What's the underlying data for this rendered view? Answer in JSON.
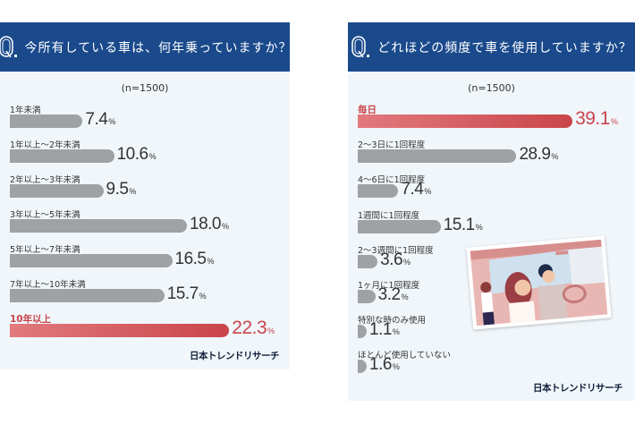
{
  "left": {
    "question_mark": "Q",
    "question": "今所有している車は、何年乗っていますか？",
    "sample": "(n=1500)",
    "brand": "日本トレンドリサーチ"
  },
  "right": {
    "question_mark": "Q",
    "question": "どれほどの頻度で車を使用していますか？",
    "sample": "(n=1500)",
    "brand": "日本トレンドリサーチ",
    "image_alt": "car-driving-illustration"
  },
  "colors": {
    "header": "#1a4a8c",
    "bar": "#9fa1a4",
    "highlight": "#c9454b",
    "panel_bg": "#f0f6fa"
  },
  "chart_data": [
    {
      "type": "bar",
      "orientation": "horizontal",
      "title": "今所有している車は、何年乗っていますか？",
      "subtitle": "(n=1500)",
      "unit": "%",
      "categories": [
        "1年未満",
        "1年以上～2年未満",
        "2年以上～3年未満",
        "3年以上～5年未満",
        "5年以上～7年未満",
        "7年以上～10年未満",
        "10年以上"
      ],
      "values": [
        7.4,
        10.6,
        9.5,
        18.0,
        16.5,
        15.7,
        22.3
      ],
      "labels": [
        "7.4",
        "10.6",
        "9.5",
        "18.0",
        "16.5",
        "15.7",
        "22.3"
      ],
      "highlight_index": 6
    },
    {
      "type": "bar",
      "orientation": "horizontal",
      "title": "どれほどの頻度で車を使用していますか？",
      "subtitle": "(n=1500)",
      "unit": "%",
      "categories": [
        "毎日",
        "2～3日に1回程度",
        "4～6日に1回程度",
        "1週間に1回程度",
        "2～3週間に1回程度",
        "1ヶ月に1回程度",
        "特別な時のみ使用",
        "ほとんど使用していない"
      ],
      "values": [
        39.1,
        28.9,
        7.4,
        15.1,
        3.6,
        3.2,
        1.1,
        1.6
      ],
      "labels": [
        "39.1",
        "28.9",
        "7.4",
        "15.1",
        "3.6",
        "3.2",
        "1.1",
        "1.6"
      ],
      "highlight_index": 0
    }
  ]
}
